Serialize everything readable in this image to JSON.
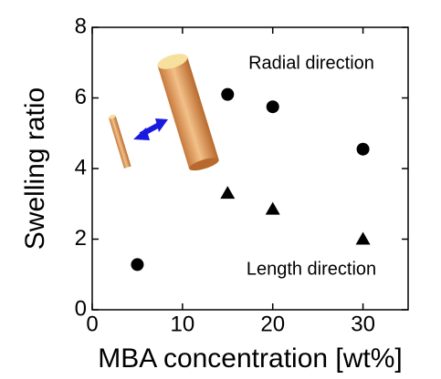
{
  "chart_data": {
    "type": "scatter",
    "xlabel": "MBA concentration [wt%]",
    "ylabel": "Swelling ratio",
    "xlim": [
      0,
      35
    ],
    "xticks": [
      0,
      10,
      20,
      30
    ],
    "ylim": [
      0,
      8
    ],
    "yticks": [
      0,
      2,
      4,
      6,
      8
    ],
    "series": [
      {
        "name": "Radial direction",
        "color": "#000000",
        "marker": "circle",
        "x": [
          5,
          15,
          20,
          30
        ],
        "values": [
          1.28,
          6.1,
          5.75,
          4.55
        ]
      },
      {
        "name": "Length direction",
        "color": "#000000",
        "marker": "triangle",
        "x": [
          15,
          20,
          30
        ],
        "values": [
          3.3,
          2.85,
          2.0
        ]
      }
    ]
  }
}
